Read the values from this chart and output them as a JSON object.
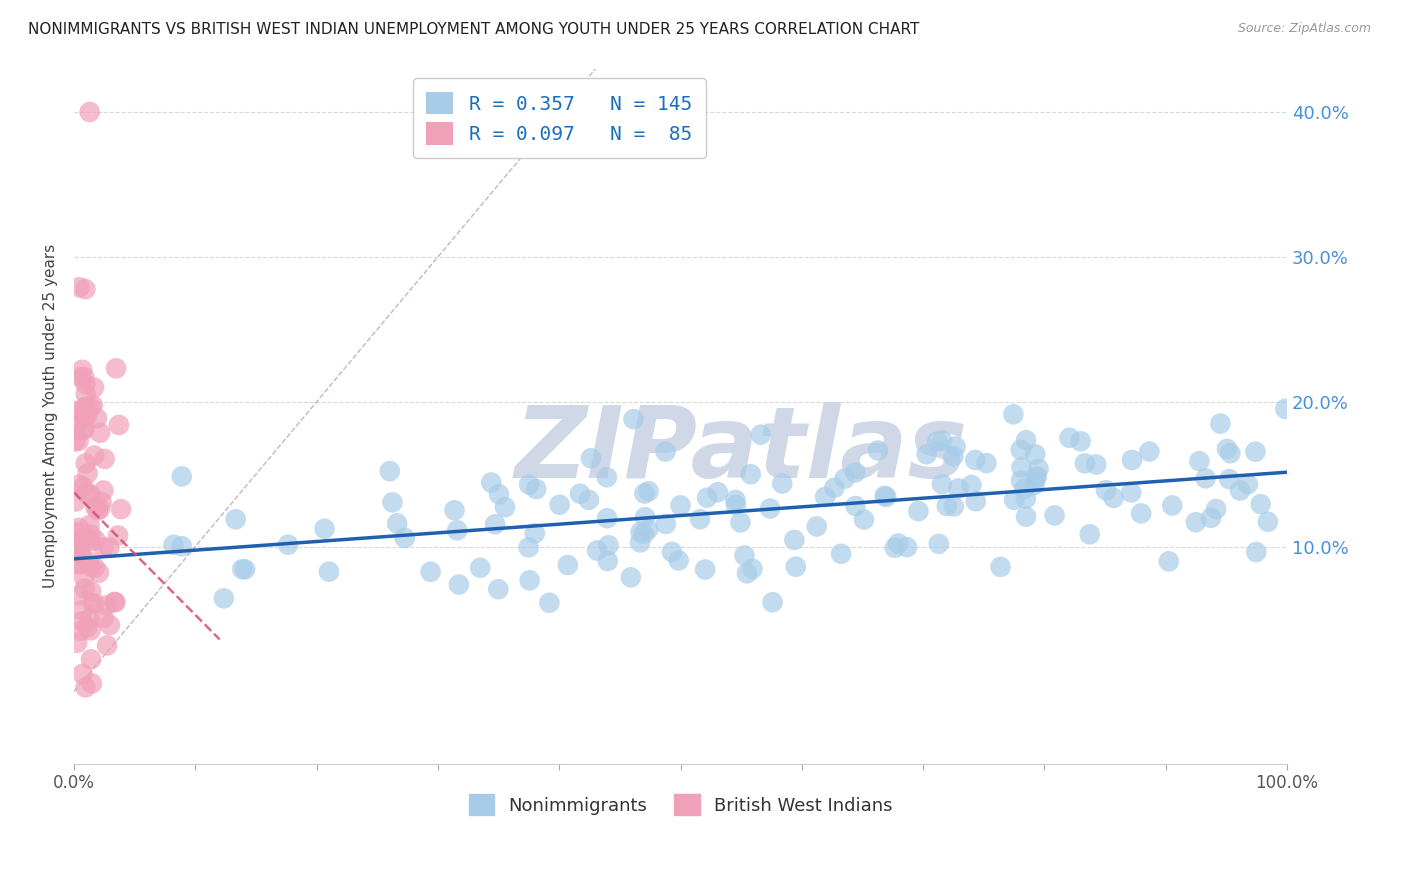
{
  "title": "NONIMMIGRANTS VS BRITISH WEST INDIAN UNEMPLOYMENT AMONG YOUTH UNDER 25 YEARS CORRELATION CHART",
  "source": "Source: ZipAtlas.com",
  "ylabel": "Unemployment Among Youth under 25 years",
  "xlim": [
    0.0,
    1.0
  ],
  "ylim": [
    -0.05,
    0.43
  ],
  "R_nonimm": 0.357,
  "N_nonimm": 145,
  "R_bwi": 0.097,
  "N_bwi": 85,
  "color_nonimm": "#a8cce8",
  "color_bwi": "#f0a0b8",
  "trend_nonimm_color": "#2060b0",
  "trend_bwi_color": "#d05070",
  "background_color": "#ffffff",
  "grid_color": "#d8d8d8",
  "title_fontsize": 11,
  "watermark_color": "#d0d8e8",
  "yticks": [
    0.1,
    0.2,
    0.3,
    0.4
  ],
  "ytick_labels": [
    "10.0%",
    "20.0%",
    "30.0%",
    "40.0%"
  ],
  "xticks": [
    0.0,
    1.0
  ],
  "xtick_labels": [
    "0.0%",
    "100.0%"
  ]
}
